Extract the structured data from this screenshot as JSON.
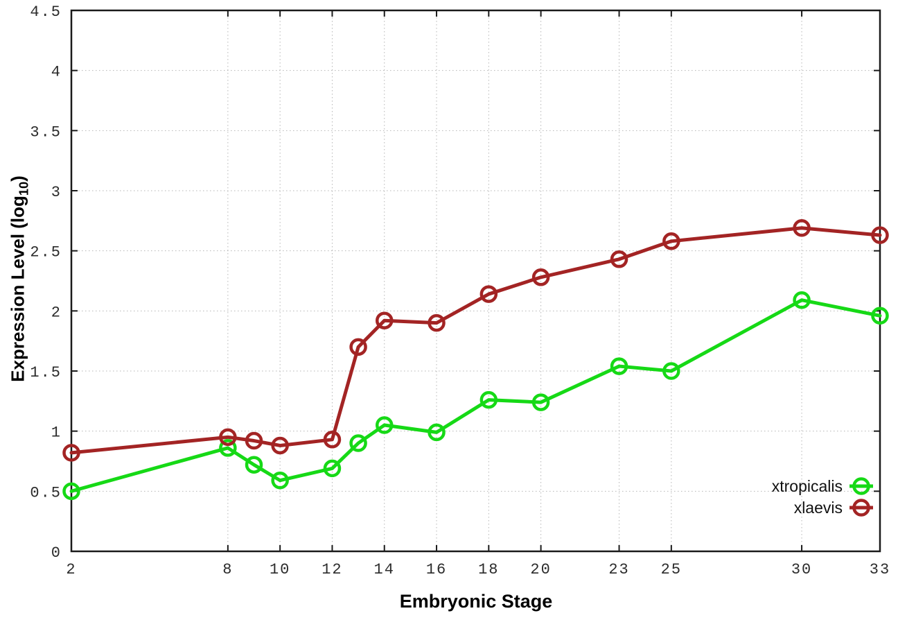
{
  "chart_data": {
    "type": "line",
    "title": "",
    "xlabel": "Embryonic Stage",
    "ylabel": "Expression Level (log10)",
    "ylabel_parts": {
      "prefix": "Expression Level (log",
      "sub": "10",
      "suffix": ")"
    },
    "xlim": [
      2,
      33
    ],
    "ylim": [
      0,
      4.5
    ],
    "xticks": [
      2,
      8,
      10,
      12,
      14,
      16,
      18,
      20,
      23,
      25,
      30,
      33
    ],
    "yticks": [
      0,
      0.5,
      1,
      1.5,
      2,
      2.5,
      3,
      3.5,
      4,
      4.5
    ],
    "grid": true,
    "legend_position": "bottom-right-inside",
    "marker": "open-circle",
    "x": [
      2,
      8,
      9,
      10,
      12,
      13,
      14,
      16,
      18,
      20,
      23,
      25,
      30,
      33
    ],
    "series": [
      {
        "name": "xtropicalis",
        "color": "#16d916",
        "values": [
          0.5,
          0.86,
          0.72,
          0.59,
          0.69,
          0.9,
          1.05,
          0.99,
          1.26,
          1.24,
          1.54,
          1.5,
          2.09,
          1.96
        ]
      },
      {
        "name": "xlaevis",
        "color": "#a32424",
        "values": [
          0.82,
          0.95,
          0.92,
          0.88,
          0.93,
          1.7,
          1.92,
          1.9,
          2.14,
          2.28,
          2.43,
          2.58,
          2.69,
          2.63
        ]
      }
    ]
  }
}
